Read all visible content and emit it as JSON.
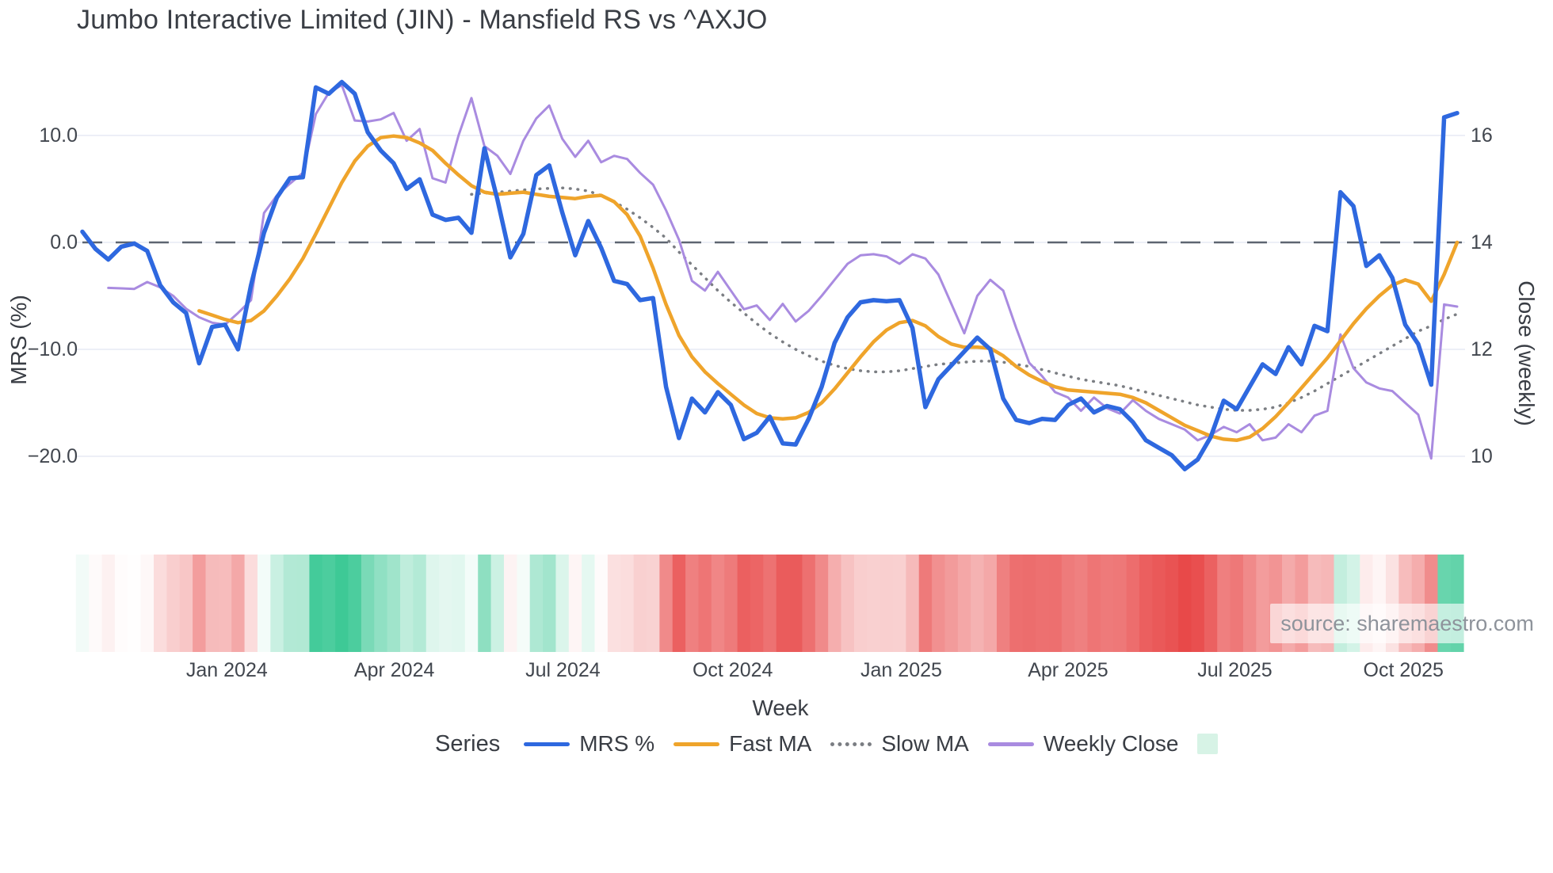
{
  "header": {
    "title": "Jumbo Interactive Limited (JIN) - Mansfield RS vs ^AXJO"
  },
  "source": {
    "text": "source: sharemaestro.com"
  },
  "legend": {
    "title": "Series",
    "items": [
      {
        "label": "MRS %",
        "swatch": "line",
        "color": "#2e68df"
      },
      {
        "label": "Fast MA",
        "swatch": "line",
        "color": "#efa42b"
      },
      {
        "label": "Slow MA",
        "swatch": "dotted",
        "color": "#7b7e83"
      },
      {
        "label": "Weekly Close",
        "swatch": "line",
        "color": "#a98be0"
      },
      {
        "label": "",
        "swatch": "square",
        "color": "#d7f3e6"
      }
    ]
  },
  "chart_data": {
    "type": "line",
    "title": "Jumbo Interactive Limited (JIN) - Mansfield RS vs ^AXJO",
    "xlabel": "Week",
    "ylabel_left": "MRS (%)",
    "ylabel_right": "Close (weekly)",
    "x_unit": "weekly points, week index 0-106 (approx. Oct 2023 - Nov 2025)",
    "n_weeks": 107,
    "grid": "horizontal only",
    "left_ticks": [
      {
        "label": "10.0",
        "v": 10
      },
      {
        "label": "0.0",
        "v": 0
      },
      {
        "label": "−10.0",
        "v": -10
      },
      {
        "label": "−20.0",
        "v": -20
      }
    ],
    "right_ticks": [
      {
        "label": "16",
        "close": 16
      },
      {
        "label": "14",
        "close": 14
      },
      {
        "label": "12",
        "close": 12
      },
      {
        "label": "10",
        "close": 10
      }
    ],
    "x_ticks": [
      {
        "label": "Jan 2024",
        "week": 11.14
      },
      {
        "label": "Apr 2024",
        "week": 24.05
      },
      {
        "label": "Jul 2024",
        "week": 37.05
      },
      {
        "label": "Oct 2024",
        "week": 50.14
      },
      {
        "label": "Jan 2025",
        "week": 63.14
      },
      {
        "label": "Apr 2025",
        "week": 76.0
      },
      {
        "label": "Jul 2025",
        "week": 88.86
      },
      {
        "label": "Oct 2025",
        "week": 101.86
      }
    ],
    "zero_line": {
      "value": 0,
      "color": "#5d6571",
      "dashed": true
    },
    "gridline_color": "#edeff7",
    "series": [
      {
        "name": "MRS %",
        "axis": "left",
        "color": "#2e68df",
        "style": "solid",
        "width": 5.5,
        "start_week": 0,
        "values": [
          1.0,
          -0.6,
          -1.6,
          -0.4,
          -0.1,
          -0.8,
          -4.0,
          -5.6,
          -6.6,
          -11.3,
          -7.9,
          -7.7,
          -10.0,
          -4.0,
          0.9,
          4.2,
          6.0,
          6.1,
          14.5,
          13.9,
          15.0,
          13.9,
          10.3,
          8.6,
          7.4,
          5.0,
          5.9,
          2.6,
          2.1,
          2.3,
          0.9,
          8.8,
          4.0,
          -1.4,
          0.8,
          6.3,
          7.2,
          2.8,
          -1.2,
          2.0,
          -0.5,
          -3.6,
          -3.9,
          -5.4,
          -5.2,
          -13.5,
          -18.3,
          -14.6,
          -15.9,
          -14.0,
          -15.2,
          -18.4,
          -17.8,
          -16.3,
          -18.8,
          -18.9,
          -16.5,
          -13.5,
          -9.4,
          -7.0,
          -5.6,
          -5.4,
          -5.5,
          -5.4,
          -8.0,
          -15.4,
          -12.8,
          -11.5,
          -10.2,
          -8.9,
          -10.0,
          -14.6,
          -16.6,
          -16.9,
          -16.5,
          -16.6,
          -15.2,
          -14.6,
          -15.9,
          -15.3,
          -15.6,
          -16.8,
          -18.5,
          -19.2,
          -19.9,
          -21.2,
          -20.3,
          -18.2,
          -14.8,
          -15.6,
          -13.5,
          -11.4,
          -12.3,
          -9.8,
          -11.4,
          -7.8,
          -8.3,
          4.7,
          3.4,
          -2.2,
          -1.2,
          -3.3,
          -7.7,
          -9.5,
          -13.3,
          11.7,
          12.1
        ]
      },
      {
        "name": "Fast MA",
        "axis": "left",
        "color": "#efa42b",
        "style": "solid",
        "width": 4.5,
        "start_week": 9,
        "values": [
          -6.4,
          -6.8,
          -7.2,
          -7.5,
          -7.3,
          -6.4,
          -5.0,
          -3.4,
          -1.5,
          0.8,
          3.2,
          5.6,
          7.6,
          9.0,
          9.8,
          9.95,
          9.8,
          9.3,
          8.6,
          7.4,
          6.3,
          5.3,
          4.7,
          4.5,
          4.6,
          4.7,
          4.5,
          4.3,
          4.2,
          4.1,
          4.3,
          4.4,
          3.8,
          2.6,
          0.6,
          -2.4,
          -5.8,
          -8.7,
          -10.7,
          -12.1,
          -13.2,
          -14.2,
          -15.2,
          -16.0,
          -16.4,
          -16.5,
          -16.4,
          -15.9,
          -15.0,
          -13.7,
          -12.2,
          -10.7,
          -9.3,
          -8.2,
          -7.5,
          -7.3,
          -7.8,
          -8.8,
          -9.5,
          -9.8,
          -9.8,
          -9.9,
          -10.6,
          -11.6,
          -12.4,
          -13.0,
          -13.5,
          -13.8,
          -13.9,
          -14.0,
          -14.1,
          -14.2,
          -14.5,
          -15.0,
          -15.7,
          -16.4,
          -17.1,
          -17.6,
          -18.1,
          -18.4,
          -18.5,
          -18.2,
          -17.4,
          -16.3,
          -15.0,
          -13.6,
          -12.2,
          -10.8,
          -9.2,
          -7.6,
          -6.2,
          -5.0,
          -4.0,
          -3.5,
          -3.9,
          -5.5,
          -3.0,
          0.0
        ]
      },
      {
        "name": "Slow MA",
        "axis": "left",
        "color": "#7b7e83",
        "style": "dotted",
        "width": 3.5,
        "start_week": 30,
        "values": [
          4.5,
          4.6,
          4.7,
          4.8,
          4.9,
          5.0,
          5.05,
          5.1,
          5.0,
          4.8,
          4.4,
          3.8,
          3.1,
          2.3,
          1.4,
          0.4,
          -0.9,
          -2.1,
          -3.3,
          -4.5,
          -5.6,
          -6.6,
          -7.6,
          -8.5,
          -9.3,
          -10.0,
          -10.6,
          -11.1,
          -11.5,
          -11.8,
          -12.0,
          -12.1,
          -12.1,
          -12.0,
          -11.8,
          -11.6,
          -11.4,
          -11.3,
          -11.2,
          -11.1,
          -11.1,
          -11.2,
          -11.4,
          -11.6,
          -11.9,
          -12.2,
          -12.5,
          -12.8,
          -13.0,
          -13.2,
          -13.4,
          -13.7,
          -14.0,
          -14.3,
          -14.6,
          -14.9,
          -15.2,
          -15.4,
          -15.6,
          -15.7,
          -15.7,
          -15.6,
          -15.4,
          -15.0,
          -14.5,
          -13.9,
          -13.2,
          -12.5,
          -11.8,
          -11.1,
          -10.4,
          -9.7,
          -9.0,
          -8.3,
          -7.8,
          -7.2,
          -6.7
        ]
      },
      {
        "name": "Weekly Close",
        "axis": "right",
        "color": "#a98be0",
        "style": "solid",
        "width": 3,
        "start_week": 2,
        "values": [
          13.15,
          13.14,
          13.13,
          13.26,
          13.16,
          13.0,
          12.76,
          12.6,
          12.5,
          12.46,
          12.68,
          12.92,
          14.55,
          14.88,
          15.1,
          15.3,
          16.4,
          16.8,
          16.94,
          16.28,
          16.26,
          16.3,
          16.42,
          15.9,
          16.12,
          15.2,
          15.12,
          16.0,
          16.7,
          15.8,
          15.62,
          15.28,
          15.9,
          16.32,
          16.56,
          15.94,
          15.6,
          15.9,
          15.5,
          15.62,
          15.56,
          15.3,
          15.08,
          14.6,
          14.05,
          13.28,
          13.1,
          13.45,
          13.1,
          12.75,
          12.82,
          12.55,
          12.85,
          12.52,
          12.72,
          13.0,
          13.3,
          13.6,
          13.76,
          13.78,
          13.74,
          13.6,
          13.78,
          13.7,
          13.4,
          12.85,
          12.3,
          13.0,
          13.3,
          13.1,
          12.4,
          11.75,
          11.5,
          11.2,
          11.1,
          10.85,
          11.1,
          10.9,
          10.8,
          11.05,
          10.85,
          10.7,
          10.6,
          10.5,
          10.3,
          10.4,
          10.55,
          10.45,
          10.6,
          10.3,
          10.35,
          10.6,
          10.45,
          10.76,
          10.85,
          12.28,
          11.65,
          11.38,
          11.27,
          11.22,
          11.0,
          10.78,
          9.96,
          12.84,
          12.8
        ]
      }
    ],
    "heatmap_strip": {
      "description": "weekly band colored by MRS % value",
      "derived_from": "MRS %",
      "positive_color": "#3ec996",
      "negative_color": "#e84949",
      "neutral_color": "#ffffff",
      "positive_saturation_at": 15,
      "negative_saturation_at": 21
    }
  }
}
